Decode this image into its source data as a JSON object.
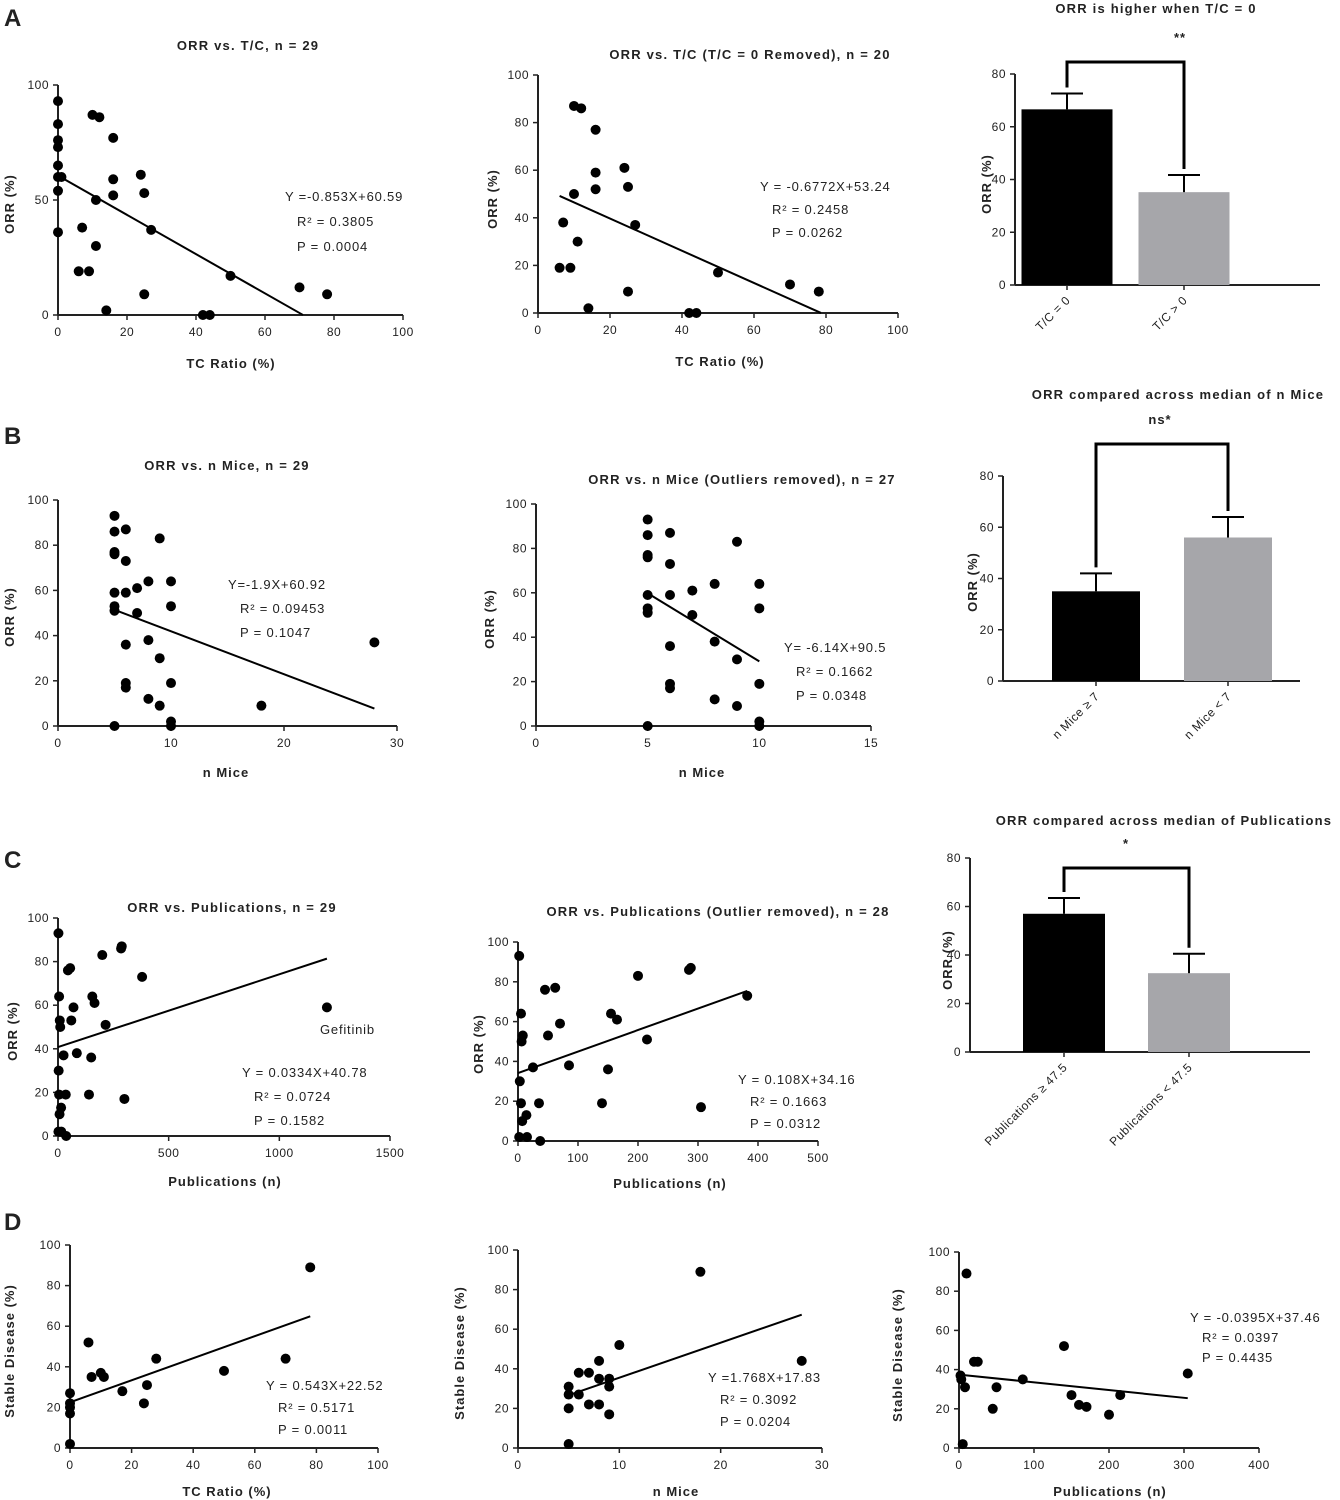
{
  "figure": {
    "panel_letters": [
      "A",
      "B",
      "C",
      "D"
    ]
  },
  "colors": {
    "black_bar": "#000000",
    "grey_bar": "#a6a6aa",
    "ink": "#222222"
  },
  "chart_data": [
    {
      "id": "a1",
      "type": "scatter",
      "title": "ORR vs. T/C, n = 29",
      "xlabel": "TC Ratio (%)",
      "ylabel": "ORR (%)",
      "xlim": [
        0,
        100
      ],
      "ylim": [
        0,
        100
      ],
      "xticks": [
        "0",
        "20",
        "40",
        "60",
        "80",
        "100"
      ],
      "yticks": [
        "0",
        "50",
        "100"
      ],
      "points": [
        [
          0,
          93
        ],
        [
          0,
          83
        ],
        [
          0,
          76
        ],
        [
          0,
          73
        ],
        [
          0,
          65
        ],
        [
          0,
          60
        ],
        [
          0,
          54
        ],
        [
          0,
          36
        ],
        [
          6,
          19
        ],
        [
          7,
          38
        ],
        [
          9,
          19
        ],
        [
          10,
          87
        ],
        [
          11,
          30
        ],
        [
          12,
          86
        ],
        [
          14,
          2
        ],
        [
          16,
          77
        ],
        [
          16,
          59
        ],
        [
          16,
          52
        ],
        [
          24,
          61
        ],
        [
          25,
          53
        ],
        [
          27,
          37
        ],
        [
          25,
          9
        ],
        [
          11,
          50
        ],
        [
          42,
          0
        ],
        [
          44,
          0
        ],
        [
          50,
          17
        ],
        [
          70,
          12
        ],
        [
          78,
          9
        ],
        [
          1,
          60
        ]
      ],
      "fit": {
        "slope": -0.853,
        "intercept": 60.59,
        "x0": 0,
        "x1": 71
      },
      "annotations": [
        "Y =-0.853X+60.59",
        "R² = 0.3805",
        "P = 0.0004"
      ]
    },
    {
      "id": "a2",
      "type": "scatter",
      "title": "ORR vs. T/C (T/C = 0 Removed), n = 20",
      "xlabel": "TC Ratio (%)",
      "ylabel": "ORR (%)",
      "xlim": [
        0,
        100
      ],
      "ylim": [
        0,
        100
      ],
      "xticks": [
        "0",
        "20",
        "40",
        "60",
        "80",
        "100"
      ],
      "yticks": [
        "0",
        "20",
        "40",
        "60",
        "80",
        "100"
      ],
      "points": [
        [
          6,
          19
        ],
        [
          7,
          38
        ],
        [
          9,
          19
        ],
        [
          10,
          87
        ],
        [
          11,
          30
        ],
        [
          10,
          50
        ],
        [
          12,
          86
        ],
        [
          14,
          2
        ],
        [
          16,
          77
        ],
        [
          16,
          59
        ],
        [
          16,
          52
        ],
        [
          24,
          61
        ],
        [
          25,
          53
        ],
        [
          27,
          37
        ],
        [
          25,
          9
        ],
        [
          42,
          0
        ],
        [
          44,
          0
        ],
        [
          50,
          17
        ],
        [
          70,
          12
        ],
        [
          78,
          9
        ]
      ],
      "fit": {
        "slope": -0.6772,
        "intercept": 53.24,
        "x0": 6,
        "x1": 78.6
      },
      "annotations": [
        "Y = -0.6772X+53.24",
        "R² = 0.2458",
        "P = 0.0262"
      ]
    },
    {
      "id": "a3",
      "type": "bar",
      "title": "ORR is higher when T/C = 0",
      "significance": "**",
      "ylabel": "ORR (%)",
      "ylim": [
        0,
        80
      ],
      "yticks": [
        "0",
        "20",
        "40",
        "60",
        "80"
      ],
      "categories": [
        "T/C = 0",
        "T/C > 0"
      ],
      "values": [
        66.6,
        35.2
      ],
      "errors": [
        6,
        6.5
      ],
      "bar_colors": [
        "#000000",
        "#a6a6aa"
      ]
    },
    {
      "id": "b1",
      "type": "scatter",
      "title": "ORR vs. n Mice, n = 29",
      "xlabel": "n Mice",
      "ylabel": "ORR (%)",
      "xlim": [
        0,
        30
      ],
      "ylim": [
        0,
        100
      ],
      "xticks": [
        "0",
        "10",
        "20",
        "30"
      ],
      "yticks": [
        "0",
        "20",
        "40",
        "60",
        "80",
        "100"
      ],
      "points": [
        [
          5,
          93
        ],
        [
          5,
          86
        ],
        [
          5,
          77
        ],
        [
          5,
          76
        ],
        [
          5,
          59
        ],
        [
          5,
          53
        ],
        [
          5,
          51
        ],
        [
          5,
          0
        ],
        [
          6,
          87
        ],
        [
          6,
          73
        ],
        [
          6,
          59
        ],
        [
          6,
          36
        ],
        [
          6,
          19
        ],
        [
          6,
          17
        ],
        [
          7,
          61
        ],
        [
          7,
          50
        ],
        [
          8,
          64
        ],
        [
          8,
          38
        ],
        [
          8,
          12
        ],
        [
          9,
          83
        ],
        [
          9,
          30
        ],
        [
          9,
          9
        ],
        [
          10,
          64
        ],
        [
          10,
          53
        ],
        [
          10,
          19
        ],
        [
          10,
          2
        ],
        [
          10,
          0
        ],
        [
          18,
          9
        ],
        [
          28,
          37
        ]
      ],
      "fit": {
        "slope": -1.9,
        "intercept": 60.92,
        "x0": 5,
        "x1": 28
      },
      "annotations": [
        "Y=-1.9X+60.92",
        "R² = 0.09453",
        "P = 0.1047"
      ]
    },
    {
      "id": "b2",
      "type": "scatter",
      "title": "ORR vs. n Mice (Outliers removed), n = 27",
      "xlabel": "n Mice",
      "ylabel": "ORR (%)",
      "xlim": [
        0,
        15
      ],
      "ylim": [
        0,
        100
      ],
      "xticks": [
        "0",
        "5",
        "10",
        "15"
      ],
      "yticks": [
        "0",
        "20",
        "40",
        "60",
        "80",
        "100"
      ],
      "points": [
        [
          5,
          93
        ],
        [
          5,
          86
        ],
        [
          5,
          77
        ],
        [
          5,
          76
        ],
        [
          5,
          59
        ],
        [
          5,
          53
        ],
        [
          5,
          51
        ],
        [
          5,
          0
        ],
        [
          6,
          87
        ],
        [
          6,
          73
        ],
        [
          6,
          59
        ],
        [
          6,
          36
        ],
        [
          6,
          19
        ],
        [
          6,
          17
        ],
        [
          7,
          61
        ],
        [
          7,
          50
        ],
        [
          8,
          64
        ],
        [
          8,
          38
        ],
        [
          8,
          12
        ],
        [
          9,
          83
        ],
        [
          9,
          30
        ],
        [
          9,
          9
        ],
        [
          10,
          64
        ],
        [
          10,
          53
        ],
        [
          10,
          19
        ],
        [
          10,
          2
        ],
        [
          10,
          0
        ]
      ],
      "fit": {
        "slope": -6.14,
        "intercept": 90.5,
        "x0": 5,
        "x1": 10
      },
      "annotations": [
        "Y= -6.14X+90.5",
        "R² = 0.1662",
        "P = 0.0348"
      ]
    },
    {
      "id": "b3",
      "type": "bar",
      "title": "ORR compared across median of n Mice",
      "significance": "ns*",
      "ylabel": "ORR (%)",
      "ylim": [
        0,
        80
      ],
      "yticks": [
        "0",
        "20",
        "40",
        "60",
        "80"
      ],
      "categories": [
        "n Mice ≥ 7",
        "n Mice < 7"
      ],
      "values": [
        35,
        56
      ],
      "errors": [
        7,
        8
      ],
      "bar_colors": [
        "#000000",
        "#a6a6aa"
      ]
    },
    {
      "id": "c1",
      "type": "scatter",
      "title": "ORR vs. Publications, n = 29",
      "xlabel": "Publications (n)",
      "ylabel": "ORR (%)",
      "xlim": [
        0,
        1500
      ],
      "ylim": [
        0,
        100
      ],
      "xticks": [
        "0",
        "500",
        "1000",
        "1500"
      ],
      "yticks": [
        "0",
        "20",
        "40",
        "60",
        "80",
        "100"
      ],
      "points": [
        [
          2,
          93
        ],
        [
          5,
          64
        ],
        [
          8,
          53
        ],
        [
          10,
          50
        ],
        [
          3,
          30
        ],
        [
          5,
          19
        ],
        [
          2,
          2
        ],
        [
          7,
          10
        ],
        [
          14,
          13
        ],
        [
          25,
          37
        ],
        [
          35,
          19
        ],
        [
          37,
          0
        ],
        [
          45,
          76
        ],
        [
          55,
          77
        ],
        [
          60,
          53
        ],
        [
          70,
          59
        ],
        [
          85,
          38
        ],
        [
          140,
          19
        ],
        [
          150,
          36
        ],
        [
          155,
          64
        ],
        [
          165,
          61
        ],
        [
          200,
          83
        ],
        [
          215,
          51
        ],
        [
          285,
          86
        ],
        [
          288,
          87
        ],
        [
          300,
          17
        ],
        [
          380,
          73
        ],
        [
          1215,
          59
        ],
        [
          15,
          2
        ]
      ],
      "fit": {
        "slope": 0.0334,
        "intercept": 40.78,
        "x0": 0,
        "x1": 1215
      },
      "callout": "Gefitinib",
      "annotations": [
        "Y = 0.0334X+40.78",
        "R² = 0.0724",
        "P = 0.1582"
      ]
    },
    {
      "id": "c2",
      "type": "scatter",
      "title": "ORR vs. Publications (Outlier removed), n = 28",
      "xlabel": "Publications (n)",
      "ylabel": "ORR (%)",
      "xlim": [
        0,
        500
      ],
      "ylim": [
        0,
        100
      ],
      "xticks": [
        "0",
        "100",
        "200",
        "300",
        "400",
        "500"
      ],
      "yticks": [
        "0",
        "20",
        "40",
        "60",
        "80",
        "100"
      ],
      "points": [
        [
          2,
          93
        ],
        [
          5,
          64
        ],
        [
          8,
          53
        ],
        [
          6,
          50
        ],
        [
          3,
          30
        ],
        [
          5,
          19
        ],
        [
          2,
          2
        ],
        [
          7,
          10
        ],
        [
          14,
          13
        ],
        [
          25,
          37
        ],
        [
          35,
          19
        ],
        [
          37,
          0
        ],
        [
          45,
          76
        ],
        [
          62,
          77
        ],
        [
          50,
          53
        ],
        [
          70,
          59
        ],
        [
          85,
          38
        ],
        [
          140,
          19
        ],
        [
          150,
          36
        ],
        [
          155,
          64
        ],
        [
          165,
          61
        ],
        [
          200,
          83
        ],
        [
          215,
          51
        ],
        [
          285,
          86
        ],
        [
          288,
          87
        ],
        [
          305,
          17
        ],
        [
          382,
          73
        ],
        [
          15,
          2
        ]
      ],
      "fit": {
        "slope": 0.108,
        "intercept": 34.16,
        "x0": 0,
        "x1": 382
      },
      "annotations": [
        "Y = 0.108X+34.16",
        "R² = 0.1663",
        "P = 0.0312"
      ]
    },
    {
      "id": "c3",
      "type": "bar",
      "title": "ORR compared across median of Publications",
      "significance": "*",
      "ylabel": "ORR (%)",
      "ylim": [
        0,
        80
      ],
      "yticks": [
        "0",
        "20",
        "40",
        "60",
        "80"
      ],
      "categories": [
        "Publications ≥ 47.5",
        "Publications < 47.5"
      ],
      "values": [
        57,
        32.5
      ],
      "errors": [
        6.5,
        8
      ],
      "bar_colors": [
        "#000000",
        "#a6a6aa"
      ]
    },
    {
      "id": "d1",
      "type": "scatter",
      "title": "",
      "xlabel": "TC Ratio (%)",
      "ylabel": "Stable Disease (%)",
      "xlim": [
        0,
        100
      ],
      "ylim": [
        0,
        100
      ],
      "xticks": [
        "0",
        "20",
        "40",
        "60",
        "80",
        "100"
      ],
      "yticks": [
        "0",
        "20",
        "40",
        "60",
        "80",
        "100"
      ],
      "points": [
        [
          0,
          27
        ],
        [
          0,
          20
        ],
        [
          0,
          17
        ],
        [
          0,
          22
        ],
        [
          0,
          2
        ],
        [
          6,
          52
        ],
        [
          7,
          35
        ],
        [
          10,
          37
        ],
        [
          11,
          35
        ],
        [
          17,
          28
        ],
        [
          24,
          22
        ],
        [
          25,
          31
        ],
        [
          28,
          44
        ],
        [
          50,
          38
        ],
        [
          70,
          44
        ],
        [
          78,
          89
        ]
      ],
      "fit": {
        "slope": 0.543,
        "intercept": 22.52,
        "x0": 0,
        "x1": 78
      },
      "annotations": [
        "Y = 0.543X+22.52",
        "R² = 0.5171",
        "P = 0.0011"
      ]
    },
    {
      "id": "d2",
      "type": "scatter",
      "title": "",
      "xlabel": "n Mice",
      "ylabel": "Stable Disease (%)",
      "xlim": [
        0,
        30
      ],
      "ylim": [
        0,
        100
      ],
      "xticks": [
        "0",
        "10",
        "20",
        "30"
      ],
      "yticks": [
        "0",
        "20",
        "40",
        "60",
        "80",
        "100"
      ],
      "points": [
        [
          5,
          31
        ],
        [
          5,
          27
        ],
        [
          5,
          20
        ],
        [
          5,
          2
        ],
        [
          6,
          38
        ],
        [
          6,
          27
        ],
        [
          7,
          38
        ],
        [
          7,
          22
        ],
        [
          8,
          44
        ],
        [
          8,
          35
        ],
        [
          8,
          22
        ],
        [
          9,
          35
        ],
        [
          9,
          31
        ],
        [
          9,
          17
        ],
        [
          10,
          52
        ],
        [
          18,
          89
        ],
        [
          28,
          44
        ]
      ],
      "fit": {
        "slope": 1.768,
        "intercept": 17.83,
        "x0": 5,
        "x1": 28
      },
      "annotations": [
        "Y =1.768X+17.83",
        "R² = 0.3092",
        "P = 0.0204"
      ]
    },
    {
      "id": "d3",
      "type": "scatter",
      "title": "",
      "xlabel": "Publications (n)",
      "ylabel": "Stable Disease (%)",
      "xlim": [
        0,
        400
      ],
      "ylim": [
        0,
        100
      ],
      "xticks": [
        "0",
        "100",
        "200",
        "300",
        "400"
      ],
      "yticks": [
        "0",
        "20",
        "40",
        "60",
        "80",
        "100"
      ],
      "points": [
        [
          2,
          37
        ],
        [
          3,
          35
        ],
        [
          5,
          2
        ],
        [
          8,
          31
        ],
        [
          10,
          89
        ],
        [
          20,
          44
        ],
        [
          25,
          44
        ],
        [
          45,
          20
        ],
        [
          50,
          31
        ],
        [
          85,
          35
        ],
        [
          140,
          52
        ],
        [
          150,
          27
        ],
        [
          160,
          22
        ],
        [
          170,
          21
        ],
        [
          200,
          17
        ],
        [
          215,
          27
        ],
        [
          305,
          38
        ]
      ],
      "fit": {
        "slope": -0.0395,
        "intercept": 37.46,
        "x0": 0,
        "x1": 305
      },
      "annotations": [
        "Y = -0.0395X+37.46",
        "R² = 0.0397",
        "P = 0.4435"
      ]
    }
  ]
}
